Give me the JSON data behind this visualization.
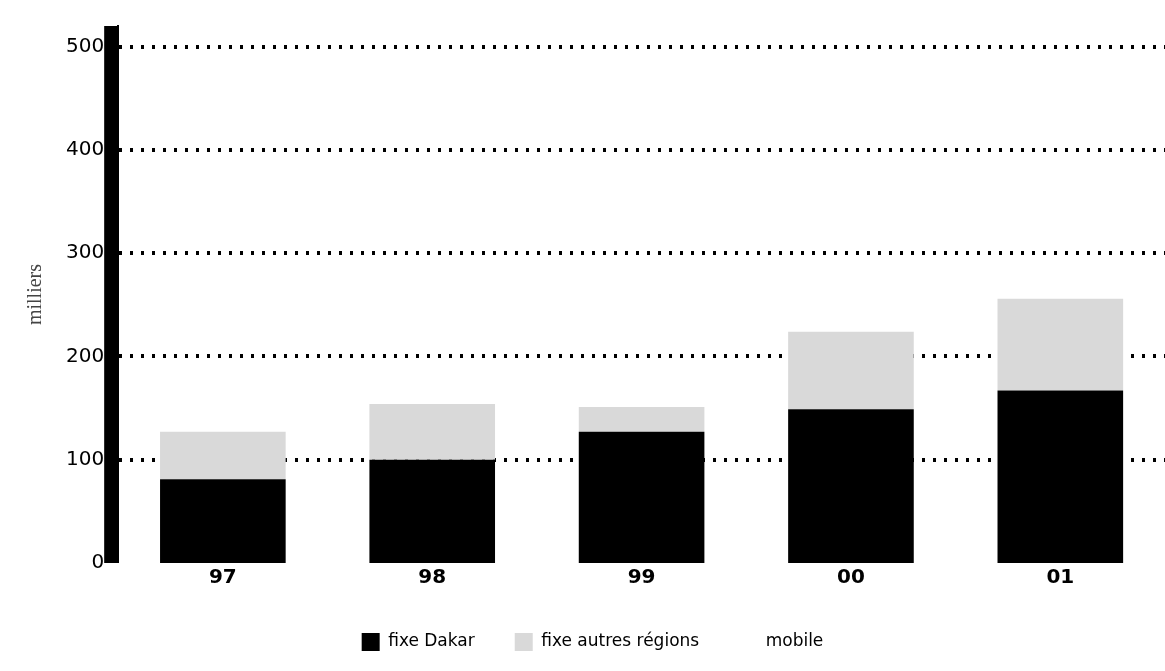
{
  "chart_data": {
    "type": "bar",
    "stacked": true,
    "ylabel": "milliers",
    "categories": [
      "97",
      "98",
      "99",
      "00",
      "01"
    ],
    "series": [
      {
        "name": "fixe Dakar",
        "color": "#000000",
        "values": [
          81,
          100,
          127,
          149,
          167
        ]
      },
      {
        "name": "fixe autres régions",
        "color": "#d9d9d9",
        "values": [
          46,
          54,
          24,
          75,
          89
        ]
      },
      {
        "name": "mobile",
        "values": [
          null,
          null,
          null,
          null,
          null
        ]
      }
    ],
    "ylim": [
      0,
      520
    ],
    "yticks": [
      0,
      100,
      200,
      300,
      400,
      500
    ],
    "grid": "y",
    "legend": "bottom"
  }
}
